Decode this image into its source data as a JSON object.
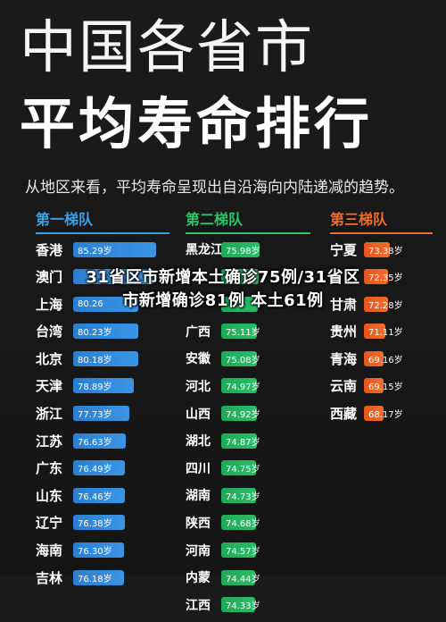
{
  "title_line1": "中国各省市",
  "title_line2": "平均寿命排行",
  "subtitle": "从地区来看，平均寿命呈现出自沿海向内陆递减的趋势。",
  "overlay_line1": "31省区市新增本土确诊75例/31省区",
  "overlay_line2": "市新增确诊81例 本土61例",
  "colors": {
    "tier1": "#3a95e4",
    "tier2": "#2bbd67",
    "tier3": "#f06d2c",
    "background": "#1a1a1a"
  },
  "tiers": [
    {
      "name": "第一梯队",
      "rows": [
        {
          "province": "香港",
          "value": "85.29岁",
          "num": 85.29
        },
        {
          "province": "澳门",
          "value": "",
          "num": 84.7
        },
        {
          "province": "上海",
          "value": "80.26",
          "num": 80.26
        },
        {
          "province": "台湾",
          "value": "80.23岁",
          "num": 80.23
        },
        {
          "province": "北京",
          "value": "80.18岁",
          "num": 80.18
        },
        {
          "province": "天津",
          "value": "78.89岁",
          "num": 78.89
        },
        {
          "province": "浙江",
          "value": "77.73岁",
          "num": 77.73
        },
        {
          "province": "江苏",
          "value": "76.63岁",
          "num": 76.63
        },
        {
          "province": "广东",
          "value": "76.49岁",
          "num": 76.49
        },
        {
          "province": "山东",
          "value": "76.46岁",
          "num": 76.46
        },
        {
          "province": "辽宁",
          "value": "76.38岁",
          "num": 76.38
        },
        {
          "province": "海南",
          "value": "76.30岁",
          "num": 76.3
        },
        {
          "province": "吉林",
          "value": "76.18岁",
          "num": 76.18
        }
      ]
    },
    {
      "name": "第二梯队",
      "rows": [
        {
          "province": "黑龙江",
          "value": "75.98岁",
          "num": 75.98
        },
        {
          "province": "",
          "value": "",
          "num": 75.6
        },
        {
          "province": "",
          "value": "",
          "num": 75.3
        },
        {
          "province": "广西",
          "value": "75.11岁",
          "num": 75.11
        },
        {
          "province": "安徽",
          "value": "75.08岁",
          "num": 75.08
        },
        {
          "province": "河北",
          "value": "74.97岁",
          "num": 74.97
        },
        {
          "province": "山西",
          "value": "74.92岁",
          "num": 74.92
        },
        {
          "province": "湖北",
          "value": "74.87岁",
          "num": 74.87
        },
        {
          "province": "四川",
          "value": "74.75岁",
          "num": 74.75
        },
        {
          "province": "湖南",
          "value": "74.73岁",
          "num": 74.73
        },
        {
          "province": "陕西",
          "value": "74.68岁",
          "num": 74.68
        },
        {
          "province": "河南",
          "value": "74.57岁",
          "num": 74.57
        },
        {
          "province": "内蒙",
          "value": "74.44岁",
          "num": 74.44
        },
        {
          "province": "江西",
          "value": "74.33岁",
          "num": 74.33
        }
      ]
    },
    {
      "name": "第三梯队",
      "rows": [
        {
          "province": "宁夏",
          "value": "73.38岁",
          "num": 73.38
        },
        {
          "province": "",
          "value": "72.35岁",
          "num": 72.35
        },
        {
          "province": "甘肃",
          "value": "72.28岁",
          "num": 72.28
        },
        {
          "province": "贵州",
          "value": "71.11岁",
          "num": 71.11
        },
        {
          "province": "青海",
          "value": "69.16岁",
          "num": 69.16
        },
        {
          "province": "云南",
          "value": "69.15岁",
          "num": 69.15
        },
        {
          "province": "西藏",
          "value": "68.17岁",
          "num": 68.17
        }
      ]
    }
  ]
}
